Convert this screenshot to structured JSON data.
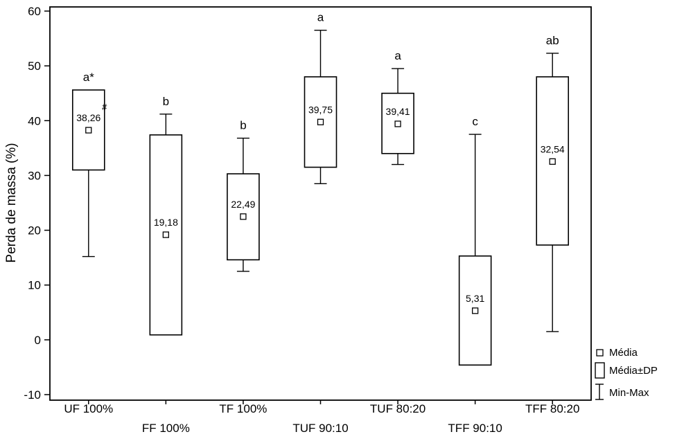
{
  "chart_data": {
    "type": "boxplot",
    "title": "",
    "xlabel": "",
    "ylabel": "Perda de massa (%)",
    "ylim": [
      -10,
      60
    ],
    "yticks": [
      60,
      50,
      40,
      30,
      20,
      10,
      0,
      -10
    ],
    "grid": false,
    "legend_position": "bottom-right",
    "legend": [
      {
        "symbol": "mean-square",
        "label": "Média"
      },
      {
        "symbol": "box",
        "label": "Média±DP"
      },
      {
        "symbol": "whisker",
        "label": "Min-Max"
      }
    ],
    "categories": [
      "UF 100%",
      "FF 100%",
      "TF 100%",
      "TUF 90:10",
      "TUF 80:20",
      "TFF 90:10",
      "TFF 80:20"
    ],
    "series": [
      {
        "category": "UF 100%",
        "mean": 38.26,
        "mean_label": "38,26",
        "box_low": 31.0,
        "box_high": 45.6,
        "min": 15.2,
        "max": 45.6,
        "letter": "a*",
        "hash": "#"
      },
      {
        "category": "FF 100%",
        "mean": 19.18,
        "mean_label": "19,18",
        "box_low": 0.9,
        "box_high": 37.4,
        "min": 0.9,
        "max": 41.2,
        "letter": "b",
        "hash": ""
      },
      {
        "category": "TF 100%",
        "mean": 22.49,
        "mean_label": "22,49",
        "box_low": 14.6,
        "box_high": 30.3,
        "min": 12.5,
        "max": 36.8,
        "letter": "b",
        "hash": ""
      },
      {
        "category": "TUF 90:10",
        "mean": 39.75,
        "mean_label": "39,75",
        "box_low": 31.5,
        "box_high": 48.0,
        "min": 28.5,
        "max": 56.5,
        "letter": "a",
        "hash": ""
      },
      {
        "category": "TUF 80:20",
        "mean": 39.41,
        "mean_label": "39,41",
        "box_low": 34.0,
        "box_high": 45.0,
        "min": 32.0,
        "max": 49.5,
        "letter": "a",
        "hash": ""
      },
      {
        "category": "TFF 90:10",
        "mean": 5.31,
        "mean_label": "5,31",
        "box_low": -4.6,
        "box_high": 15.3,
        "min": -4.6,
        "max": 37.5,
        "letter": "c",
        "hash": ""
      },
      {
        "category": "TFF 80:20",
        "mean": 32.54,
        "mean_label": "32,54",
        "box_low": 17.3,
        "box_high": 48.0,
        "min": 1.5,
        "max": 52.3,
        "letter": "ab",
        "hash": ""
      }
    ]
  }
}
